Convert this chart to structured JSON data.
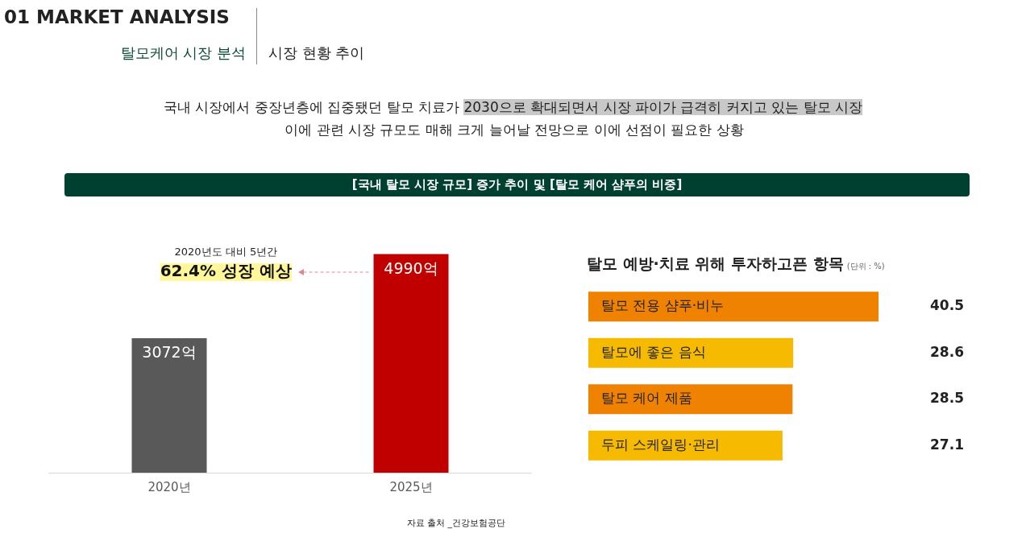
{
  "chart_data": [
    {
      "type": "bar",
      "title": "[국내 탈모 시장 규모] 증가 추이 및 [탈모 케어 샴푸의 비중]",
      "categories": [
        "2020년",
        "2025년"
      ],
      "values": [
        3072,
        4990
      ],
      "colors": [
        "#595959",
        "#c00000"
      ],
      "value_labels": [
        "3072억",
        "4990억"
      ],
      "annotations": [
        "01 MARKET ANALYSIS",
        "탈모케어 시장 분석",
        "시장 현황 추이",
        "국내 시장에서 중장년층에 집중됐던 탈모 치료가",
        "2030으로 확대되면서 시장 파이가 급격히 커지고 있는 탈모 시장",
        "이에 관련 시장 규모도 매해 크게 늘어날 전망으로 이에 선점이 필요한 상황",
        "2020년도 대비 5년간",
        "62.4% 성장 예상",
        "자료 출처 _건강보험공단"
      ]
    },
    {
      "type": "bar",
      "orientation": "horizontal",
      "title": "탈모 예방·치료 위해 투자하고픈 항목",
      "subtitle": "(단위 : %)",
      "categories": [
        "탈모 전용 샴푸·비누",
        "탈모에 좋은 음식",
        "탈모 케어 제품",
        "두피 스케일링·관리"
      ],
      "values": [
        40.5,
        28.6,
        28.5,
        27.1
      ],
      "colors": [
        "#ef8200",
        "#f6bb00",
        "#ef8200",
        "#f6bb00"
      ],
      "data_labels": true
    }
  ]
}
